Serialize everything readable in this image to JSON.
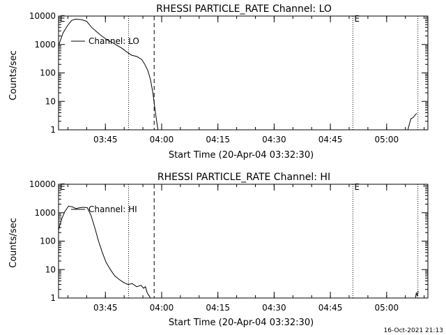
{
  "footer": {
    "timestamp": "16-Oct-2021 21:13"
  },
  "chart_data": [
    {
      "type": "line",
      "title": "RHESSI PARTICLE_RATE Channel: LO",
      "xlabel": "Start Time (20-Apr-04 03:32:30)",
      "ylabel": "Counts/sec",
      "yscale": "log",
      "ylim": [
        1,
        10000
      ],
      "xlim": [
        "03:32:30",
        "05:11:00"
      ],
      "yticks": [
        "1",
        "10",
        "100",
        "1000",
        "10000"
      ],
      "xticks": [
        "03:45",
        "04:00",
        "04:15",
        "04:30",
        "04:45",
        "05:00"
      ],
      "legend": {
        "label": "Channel: LO",
        "placement": "upper-left"
      },
      "markers": [
        {
          "time": "03:32:30",
          "label": "E",
          "style": "none"
        },
        {
          "time": "03:51:10",
          "label": "",
          "style": "dotted"
        },
        {
          "time": "03:58:00",
          "label": "",
          "style": "dashed"
        },
        {
          "time": "04:51:00",
          "label": "E",
          "style": "dotted"
        },
        {
          "time": "05:08:20",
          "label": "",
          "style": "dotted"
        }
      ],
      "series": [
        {
          "name": "Channel: LO",
          "segments": [
            {
              "x": [
                "03:32:30",
                "03:33:40",
                "03:34:50",
                "03:36:00",
                "03:37:00",
                "03:38:40",
                "03:40:00",
                "03:41:20",
                "03:42:40",
                "03:44:00",
                "03:45:20",
                "03:46:40",
                "03:48:00",
                "03:49:20",
                "03:50:40",
                "03:52:00",
                "03:53:20",
                "03:54:40",
                "03:55:30",
                "03:56:20",
                "03:57:00",
                "03:57:40",
                "03:58:10",
                "03:58:40",
                "03:59:00"
              ],
              "y": [
                900,
                2500,
                4500,
                7000,
                7800,
                7500,
                6500,
                4000,
                2800,
                2000,
                1500,
                1200,
                950,
                750,
                550,
                420,
                380,
                300,
                200,
                120,
                60,
                20,
                6,
                2,
                1
              ]
            },
            {
              "x": [
                "05:05:40",
                "05:06:10",
                "05:06:30",
                "05:06:50",
                "05:07:10",
                "05:07:30",
                "05:08:00"
              ],
              "y": [
                1,
                1.8,
                2.5,
                2.6,
                2.8,
                3.2,
                3.8
              ]
            }
          ]
        }
      ]
    },
    {
      "type": "line",
      "title": "RHESSI PARTICLE_RATE Channel: HI",
      "xlabel": "Start Time (20-Apr-04 03:32:30)",
      "ylabel": "Counts/sec",
      "yscale": "log",
      "ylim": [
        1,
        10000
      ],
      "xlim": [
        "03:32:30",
        "05:11:00"
      ],
      "yticks": [
        "1",
        "10",
        "100",
        "1000",
        "10000"
      ],
      "xticks": [
        "03:45",
        "04:00",
        "04:15",
        "04:30",
        "04:45",
        "05:00"
      ],
      "legend": {
        "label": "Channel: HI",
        "placement": "upper-left"
      },
      "markers": [
        {
          "time": "03:32:30",
          "label": "E",
          "style": "none"
        },
        {
          "time": "03:51:10",
          "label": "",
          "style": "dotted"
        },
        {
          "time": "03:58:00",
          "label": "",
          "style": "dashed"
        },
        {
          "time": "04:51:00",
          "label": "E",
          "style": "dotted"
        },
        {
          "time": "05:08:20",
          "label": "",
          "style": "dotted"
        }
      ],
      "series": [
        {
          "name": "Channel: HI",
          "segments": [
            {
              "x": [
                "03:32:30",
                "03:33:20",
                "03:34:10",
                "03:35:10",
                "03:36:10",
                "03:37:10",
                "03:38:10",
                "03:39:10",
                "03:40:10",
                "03:41:10",
                "03:42:10",
                "03:43:10",
                "03:44:10",
                "03:45:10",
                "03:46:20",
                "03:47:30",
                "03:48:40",
                "03:49:50",
                "03:51:00",
                "03:52:10",
                "03:53:20",
                "03:54:30",
                "03:55:10",
                "03:55:40",
                "03:56:10",
                "03:56:40",
                "03:57:00"
              ],
              "y": [
                250,
                600,
                1100,
                1700,
                1600,
                1400,
                1500,
                1550,
                1500,
                800,
                300,
                100,
                40,
                18,
                10,
                6,
                4.5,
                3.5,
                3,
                3.2,
                2.5,
                2.8,
                2.2,
                2.5,
                1.5,
                1.2,
                1
              ]
            },
            {
              "x": [
                "05:07:40",
                "05:07:55",
                "05:08:10",
                "05:08:25"
              ],
              "y": [
                1,
                1.5,
                1.2,
                1.8
              ]
            }
          ]
        }
      ]
    }
  ]
}
